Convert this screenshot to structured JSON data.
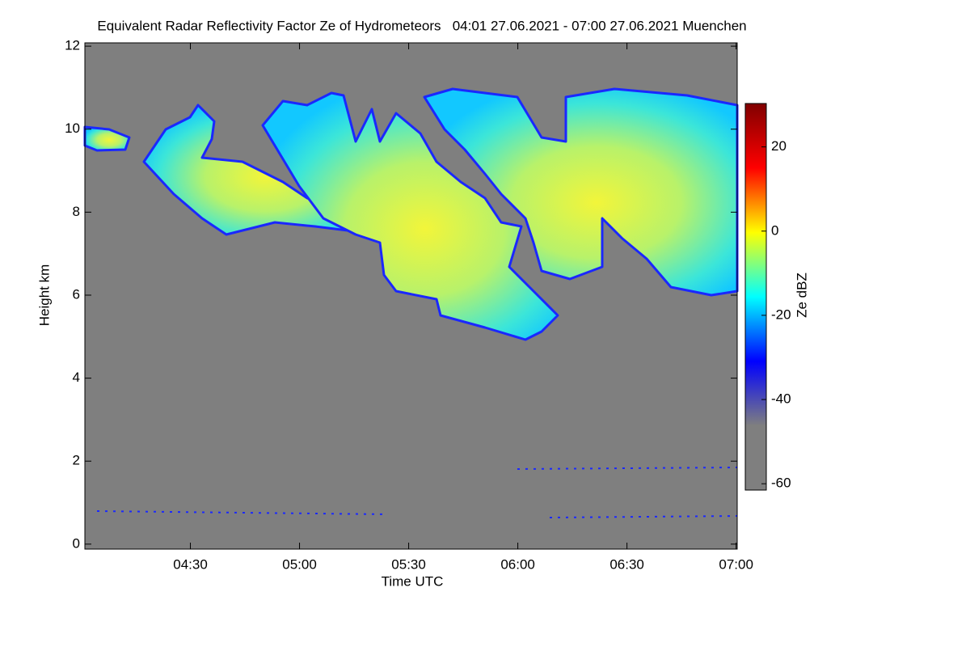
{
  "chart_data": {
    "type": "heatmap",
    "title": "Equivalent Radar Reflectivity Factor Ze of Hydrometeors   04:01 27.06.2021 - 07:00 27.06.2021 Muenchen",
    "xlabel": "Time UTC",
    "ylabel": "Height km",
    "xlim": [
      241,
      420.3
    ],
    "xticks": [
      {
        "value": 270,
        "label": "04:30"
      },
      {
        "value": 300,
        "label": "05:00"
      },
      {
        "value": 330,
        "label": "05:30"
      },
      {
        "value": 360,
        "label": "06:00"
      },
      {
        "value": 390,
        "label": "06:30"
      },
      {
        "value": 420,
        "label": "07:00"
      }
    ],
    "ylim": [
      -0.12,
      12.08
    ],
    "yticks": [
      0,
      2,
      4,
      6,
      8,
      10,
      12
    ],
    "background": "#7f7f7f",
    "colorbar": {
      "label": "Ze dBZ",
      "lim": [
        -61.5,
        30.3
      ],
      "ticks": [
        20,
        0,
        -20,
        -40,
        -60
      ],
      "colors": [
        "#7f7f7f",
        "#7f7f7f",
        "#0000ff",
        "#00ffff",
        "#ffff00",
        "#ff0000",
        "#800000"
      ]
    }
  }
}
